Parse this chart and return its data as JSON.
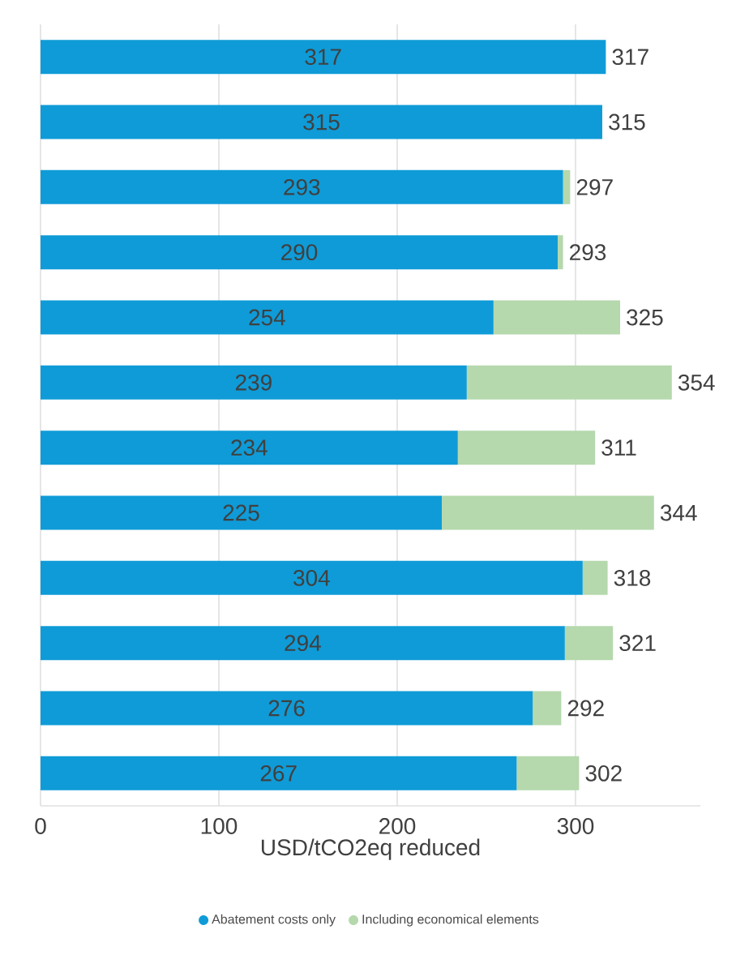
{
  "chart_data": {
    "type": "bar",
    "orientation": "horizontal",
    "stacked": true,
    "xlabel": "USD/tCO2eq reduced",
    "categories": [
      null,
      null,
      null,
      null,
      null,
      null,
      null,
      null,
      null,
      null,
      null,
      null
    ],
    "series": [
      {
        "name": "Abatement costs only",
        "color": "#0f9bd7",
        "values": [
          317,
          315,
          293,
          290,
          254,
          239,
          234,
          225,
          304,
          294,
          276,
          267
        ],
        "value_labels": [
          "317",
          "315",
          "293",
          "290",
          "254",
          "239",
          "234",
          "225",
          "304",
          "294",
          "276",
          "267"
        ]
      },
      {
        "name": "Including economical elements",
        "color": "#b5d8ad",
        "values": [
          0,
          0,
          4,
          3,
          71,
          115,
          77,
          119,
          14,
          27,
          16,
          35
        ]
      }
    ],
    "totals": [
      "317",
      "315",
      "297",
      "293",
      "325",
      "354",
      "311",
      "344",
      "318",
      "321",
      "292",
      "302"
    ],
    "xlim": [
      0,
      370
    ],
    "xticks": [
      0,
      100,
      200,
      300
    ],
    "grid": "x",
    "legend": "bottom"
  }
}
